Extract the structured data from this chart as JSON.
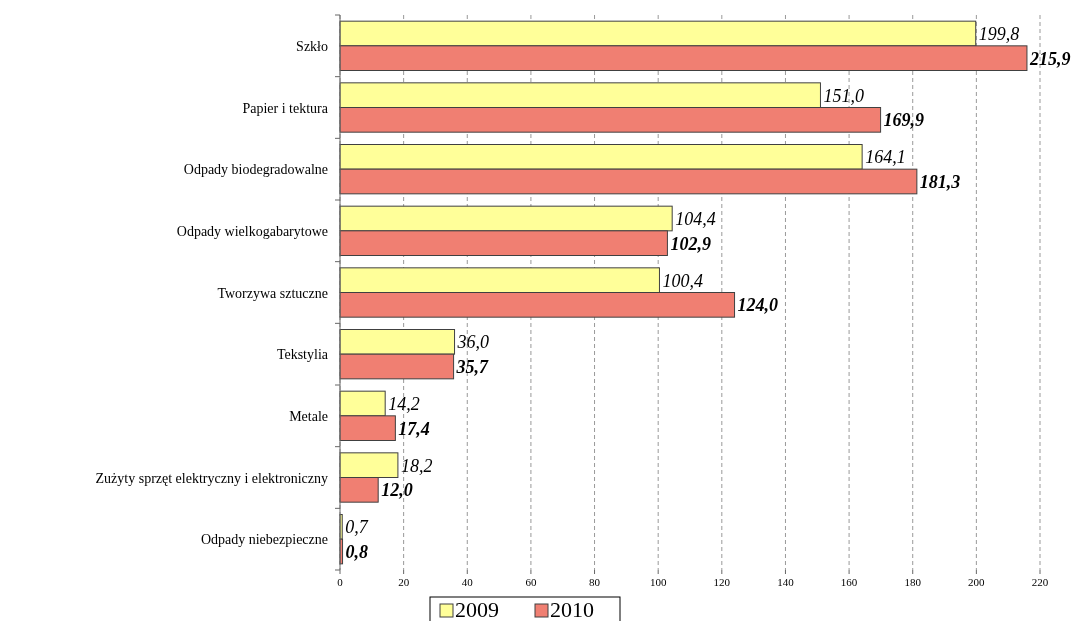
{
  "chart_data": {
    "type": "bar",
    "orientation": "horizontal",
    "categories": [
      "Szkło",
      "Papier i tektura",
      "Odpady biodegradowalne",
      "Odpady wielkogabarytowe",
      "Tworzywa sztuczne",
      "Tekstylia",
      "Metale",
      "Zużyty sprzęt elektryczny i elektroniczny",
      "Odpady niebezpieczne"
    ],
    "series": [
      {
        "name": "2009",
        "color": "#ffff99",
        "values": [
          199.8,
          151.0,
          164.1,
          104.4,
          100.4,
          36.0,
          14.2,
          18.2,
          0.7
        ],
        "value_labels": [
          "199,8",
          "151,0",
          "164,1",
          "104,4",
          "100,4",
          "36,0",
          "14,2",
          "18,2",
          "0,7"
        ]
      },
      {
        "name": "2010",
        "color": "#f07f72",
        "values": [
          215.9,
          169.9,
          181.3,
          102.9,
          124.0,
          35.7,
          17.4,
          12.0,
          0.8
        ],
        "value_labels": [
          "215,9",
          "169,9",
          "181,3",
          "102,9",
          "124,0",
          "35,7",
          "17,4",
          "12,0",
          "0,8"
        ]
      }
    ],
    "xlim": [
      0,
      220
    ],
    "xticks": [
      0,
      20,
      40,
      60,
      80,
      100,
      120,
      140,
      160,
      180,
      200,
      220
    ],
    "grid": "x",
    "legend": "bottom"
  }
}
